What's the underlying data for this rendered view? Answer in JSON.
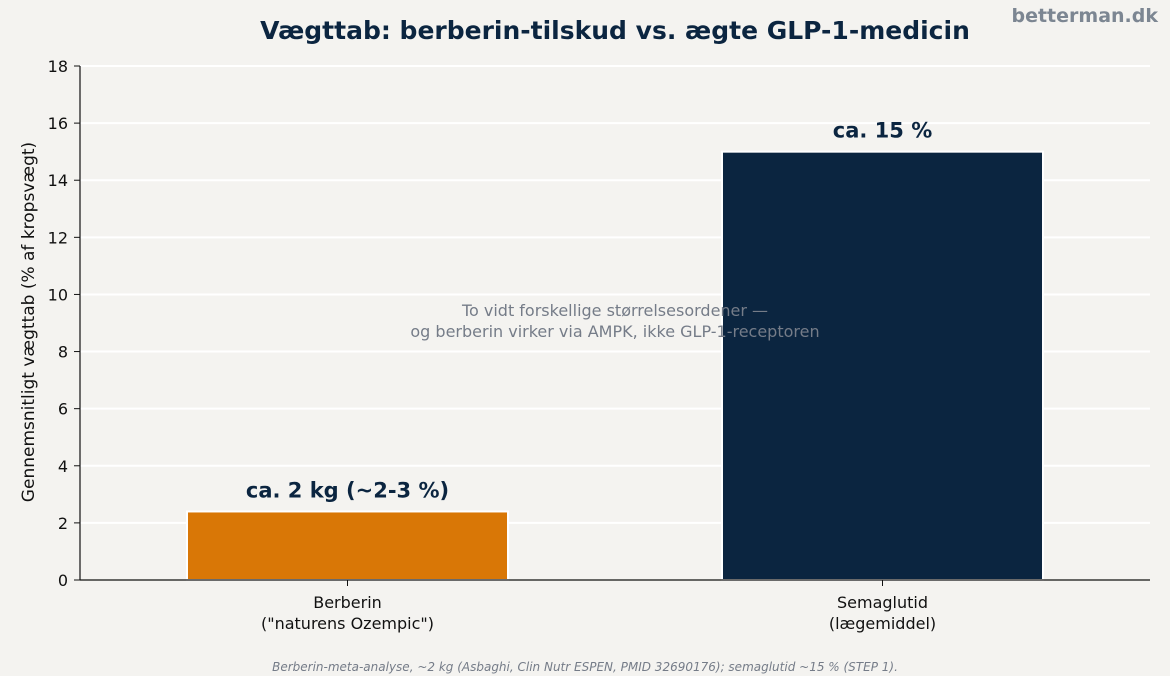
{
  "brand": "betterman.dk",
  "footnote": "Berberin-meta-analyse, ~2 kg (Asbaghi, Clin Nutr ESPEN, PMID 32690176); semaglutid ~15 % (STEP 1).",
  "annotation": {
    "line1": "To vidt forskellige størrelsesordener —",
    "line2": "og berberin virker via AMPK, ikke GLP-1-receptoren"
  },
  "chart_data": {
    "type": "bar",
    "title": "Vægttab: berberin-tilskud vs. ægte GLP-1-medicin",
    "xlabel": "",
    "ylabel": "Gennemsnitligt vægttab (% af kropsvægt)",
    "ylim": [
      0,
      18
    ],
    "yticks": [
      0,
      2,
      4,
      6,
      8,
      10,
      12,
      14,
      16,
      18
    ],
    "grid": true,
    "categories": [
      [
        "Berberin",
        "(\"naturens Ozempic\")"
      ],
      [
        "Semaglutid",
        "(lægemiddel)"
      ]
    ],
    "values": [
      2.4,
      15
    ],
    "data_labels": [
      "ca. 2 kg (~2-3 %)",
      "ca. 15 %"
    ],
    "colors": [
      "#d97706",
      "#0b2540"
    ]
  }
}
